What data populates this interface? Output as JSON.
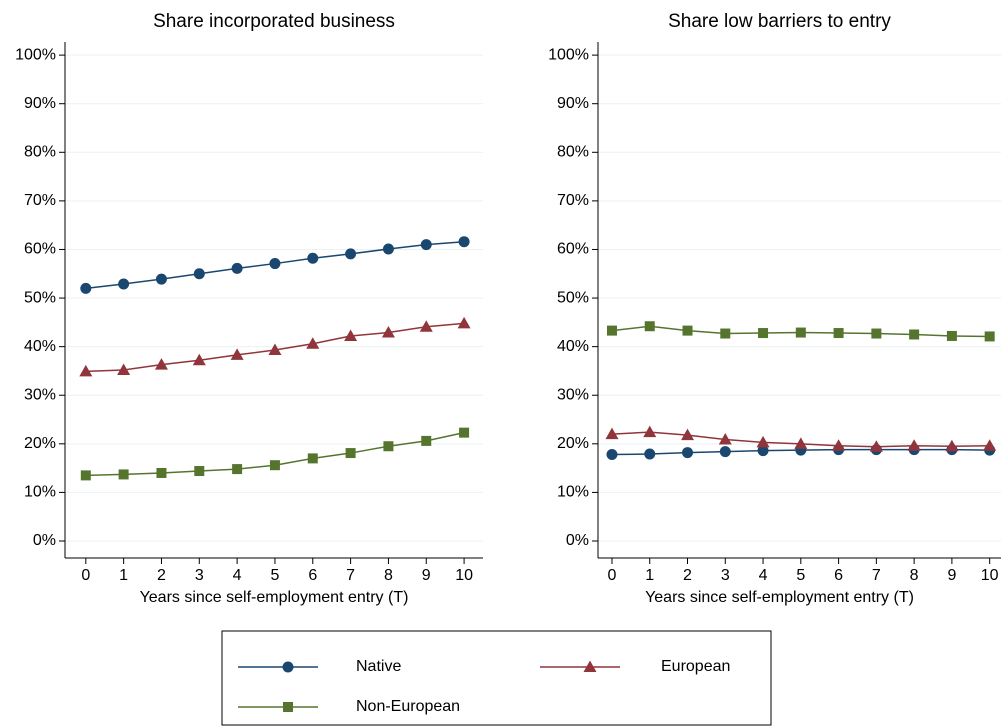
{
  "chart_data": [
    {
      "type": "line",
      "title": "Share incorporated business",
      "x_label": "Years since self-employment entry (T)",
      "x": [
        0,
        1,
        2,
        3,
        4,
        5,
        6,
        7,
        8,
        9,
        10
      ],
      "xlim": [
        -0.55,
        10.5
      ],
      "xticks": [
        0,
        1,
        2,
        3,
        4,
        5,
        6,
        7,
        8,
        9,
        10
      ],
      "ylim": [
        -3.5,
        102.7
      ],
      "yticks": [
        {
          "value": 0,
          "label": "0%"
        },
        {
          "value": 10,
          "label": "10%"
        },
        {
          "value": 20,
          "label": "20%"
        },
        {
          "value": 30,
          "label": "30%"
        },
        {
          "value": 40,
          "label": "40%"
        },
        {
          "value": 50,
          "label": "50%"
        },
        {
          "value": 60,
          "label": "60%"
        },
        {
          "value": 70,
          "label": "70%"
        },
        {
          "value": 80,
          "label": "80%"
        },
        {
          "value": 90,
          "label": "90%"
        },
        {
          "value": 100,
          "label": "100%"
        }
      ],
      "grid": true,
      "series": [
        {
          "name": "Native",
          "color": "#1a476f",
          "marker": "circle",
          "values": [
            52,
            52.9,
            53.9,
            55,
            56.1,
            57.1,
            58.2,
            59.1,
            60.1,
            61,
            61.6
          ]
        },
        {
          "name": "European",
          "color": "#90353b",
          "marker": "triangle",
          "values": [
            34.9,
            35.2,
            36.3,
            37.2,
            38.3,
            39.3,
            40.6,
            42.2,
            42.9,
            44.1,
            44.8
          ]
        },
        {
          "name": "Non-European",
          "color": "#55752f",
          "marker": "square",
          "values": [
            13.5,
            13.7,
            14,
            14.4,
            14.8,
            15.6,
            17,
            18.1,
            19.5,
            20.6,
            22.3
          ]
        }
      ]
    },
    {
      "type": "line",
      "title": "Share low barriers to entry",
      "x_label": "Years since self-employment entry (T)",
      "x": [
        0,
        1,
        2,
        3,
        4,
        5,
        6,
        7,
        8,
        9,
        10
      ],
      "xlim": [
        -0.37,
        10.3
      ],
      "xticks": [
        0,
        1,
        2,
        3,
        4,
        5,
        6,
        7,
        8,
        9,
        10
      ],
      "ylim": [
        -3.5,
        102.7
      ],
      "yticks": [
        {
          "value": 0,
          "label": "0%"
        },
        {
          "value": 10,
          "label": "10%"
        },
        {
          "value": 20,
          "label": "20%"
        },
        {
          "value": 30,
          "label": "30%"
        },
        {
          "value": 40,
          "label": "40%"
        },
        {
          "value": 50,
          "label": "50%"
        },
        {
          "value": 60,
          "label": "60%"
        },
        {
          "value": 70,
          "label": "70%"
        },
        {
          "value": 80,
          "label": "80%"
        },
        {
          "value": 90,
          "label": "90%"
        },
        {
          "value": 100,
          "label": "100%"
        }
      ],
      "grid": true,
      "series": [
        {
          "color": "#1a476f",
          "marker": "circle",
          "values": [
            17.8,
            17.9,
            18.2,
            18.4,
            18.6,
            18.7,
            18.8,
            18.8,
            18.8,
            18.8,
            18.7
          ]
        },
        {
          "color": "#90353b",
          "marker": "triangle",
          "values": [
            22,
            22.4,
            21.8,
            20.9,
            20.3,
            20,
            19.6,
            19.4,
            19.6,
            19.5,
            19.6
          ]
        },
        {
          "color": "#55752f",
          "marker": "square",
          "values": [
            43.3,
            44.2,
            43.3,
            42.7,
            42.8,
            42.9,
            42.8,
            42.7,
            42.5,
            42.2,
            42.1
          ]
        }
      ]
    }
  ]
}
